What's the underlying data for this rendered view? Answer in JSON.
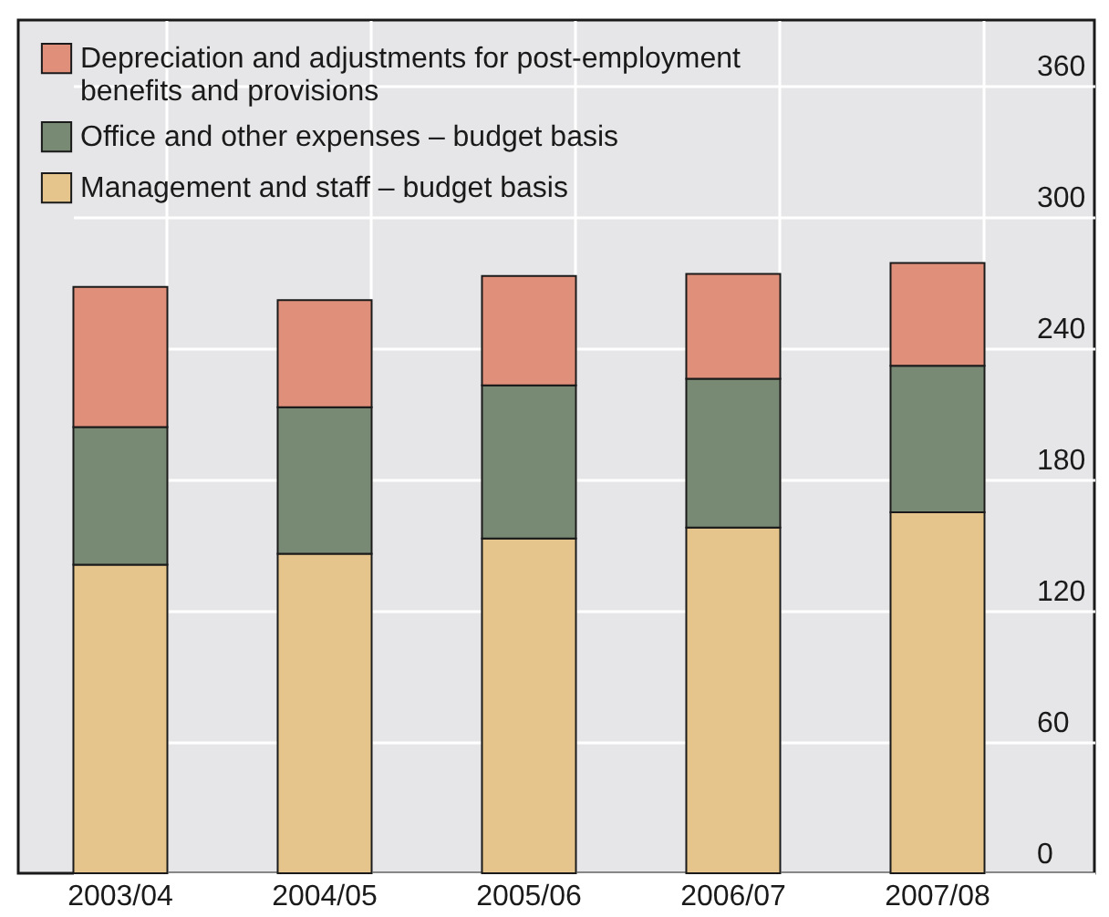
{
  "chart_data": {
    "type": "bar",
    "stacked": true,
    "categories": [
      "2003/04",
      "2004/05",
      "2005/06",
      "2006/07",
      "2007/08"
    ],
    "series": [
      {
        "name": "Management and staff – budget basis",
        "color": "#e5c58b",
        "values": [
          141,
          146,
          153,
          158,
          165
        ]
      },
      {
        "name": "Office and other expenses – budget basis",
        "color": "#788a74",
        "values": [
          63,
          67,
          70,
          68,
          67
        ]
      },
      {
        "name": "Depreciation and adjustments for post-employment benefits and provisions",
        "color": "#e0907a",
        "values": [
          64,
          49,
          50,
          48,
          47
        ]
      }
    ],
    "ylim": [
      0,
      390
    ],
    "yticks": [
      0,
      60,
      120,
      180,
      240,
      300,
      360
    ],
    "grid": true,
    "legend": "top left"
  }
}
